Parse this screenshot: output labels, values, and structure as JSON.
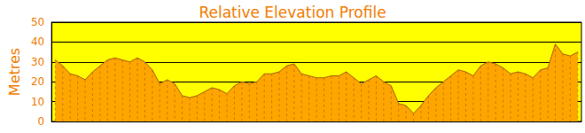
{
  "chart_data": {
    "type": "area",
    "title": "Relative Elevation Profile",
    "y_label": "Metres",
    "categories": [
      null,
      null,
      null,
      null,
      null,
      null,
      null,
      null,
      null,
      null,
      null,
      null,
      null,
      null,
      null,
      null,
      null,
      null,
      null,
      null,
      null,
      null,
      null,
      null,
      null,
      null,
      null,
      null,
      null,
      null,
      null,
      null,
      null,
      null,
      null,
      null,
      null,
      null,
      null,
      null,
      null,
      null,
      null,
      null,
      null,
      null,
      null,
      null,
      null,
      null,
      null,
      null,
      null,
      null,
      null,
      null,
      null,
      null,
      null,
      null,
      null,
      null,
      null,
      null,
      null,
      null,
      null,
      null,
      null,
      null,
      null
    ],
    "values": [
      31,
      28,
      24,
      23,
      21,
      25,
      28,
      31,
      32,
      31,
      30,
      32,
      30,
      26,
      19,
      21,
      19,
      13,
      12,
      13,
      15,
      17,
      16,
      14,
      18,
      20,
      19,
      20,
      24,
      24,
      25,
      28,
      29,
      24,
      23,
      22,
      22,
      23,
      23,
      25,
      22,
      19,
      21,
      23,
      20,
      18,
      9,
      8,
      4,
      8,
      13,
      17,
      20,
      23,
      26,
      25,
      23,
      28,
      30,
      29,
      27,
      24,
      25,
      24,
      22,
      26,
      27,
      39,
      34,
      33,
      35
    ],
    "color": "#ffa500",
    "ylim": [
      0,
      50
    ],
    "yticks": [
      0,
      10,
      20,
      30,
      40,
      50
    ],
    "grid": true,
    "tick_labels": "y"
  }
}
